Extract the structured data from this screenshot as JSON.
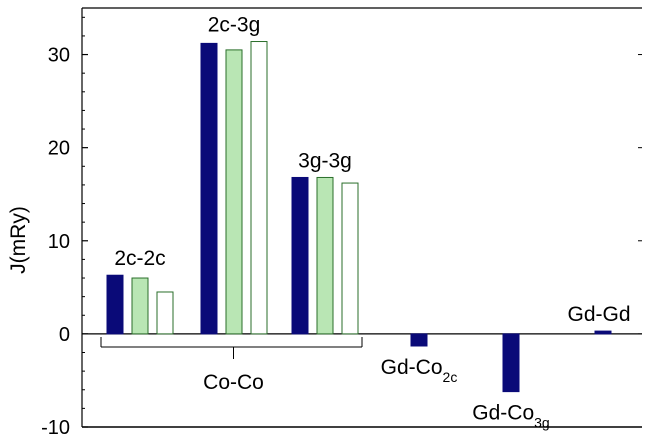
{
  "chart_data": {
    "type": "bar",
    "ylabel": "J(mRy)",
    "ylim": [
      -10,
      35
    ],
    "yticks": [
      -10,
      0,
      10,
      20,
      30
    ],
    "ytick_labels": [
      "-10",
      "0",
      "10",
      "20",
      "30"
    ],
    "grid": false,
    "legend": "none",
    "colors": {
      "dark": "#0a0a78",
      "light": "#b9e6b4",
      "empty": "#ffffff",
      "stroke_green": "#2a6e2a",
      "axis": "#000000"
    },
    "groups": [
      {
        "label": "2c-2c",
        "bars": [
          {
            "style": "dark",
            "value": 6.3
          },
          {
            "style": "light",
            "value": 6.0
          },
          {
            "style": "empty",
            "value": 4.5
          }
        ]
      },
      {
        "label": "2c-3g",
        "bars": [
          {
            "style": "dark",
            "value": 31.2
          },
          {
            "style": "light",
            "value": 30.5
          },
          {
            "style": "empty",
            "value": 31.4
          }
        ]
      },
      {
        "label": "3g-3g",
        "bars": [
          {
            "style": "dark",
            "value": 16.8
          },
          {
            "style": "light",
            "value": 16.8
          },
          {
            "style": "empty",
            "value": 16.2
          }
        ]
      },
      {
        "label": "Gd-Co",
        "label_sub": "2c",
        "bars": [
          {
            "style": "dark",
            "value": -1.3
          }
        ]
      },
      {
        "label": "Gd-Co",
        "label_sub": "3g",
        "bars": [
          {
            "style": "dark",
            "value": -6.2
          }
        ]
      },
      {
        "label": "Gd-Gd",
        "bars": [
          {
            "style": "dark",
            "value": 0.3
          }
        ]
      }
    ],
    "bracket_label": "Co-Co"
  }
}
